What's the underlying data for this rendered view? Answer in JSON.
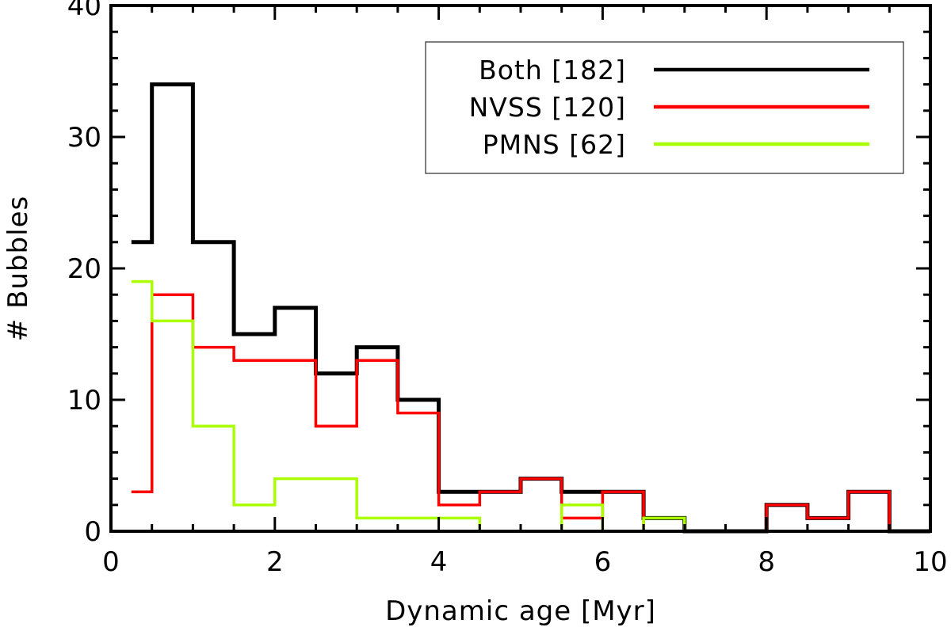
{
  "chart_data": {
    "type": "line",
    "step": true,
    "title": "",
    "xlabel": "Dynamic age [Myr]",
    "ylabel": "# Bubbles",
    "xlim": [
      0,
      10
    ],
    "ylim": [
      0,
      40
    ],
    "x_ticks": [
      0,
      2,
      4,
      6,
      8,
      10
    ],
    "y_ticks": [
      0,
      10,
      20,
      30,
      40
    ],
    "grid": false,
    "legend_position": "top-right",
    "bin_edges": [
      0.25,
      0.5,
      1.0,
      1.5,
      2.0,
      2.5,
      3.0,
      3.5,
      4.0,
      4.5,
      5.0,
      5.5,
      6.0,
      6.5,
      7.0,
      7.5,
      8.0,
      8.5,
      9.0,
      9.5,
      10.0
    ],
    "series": [
      {
        "name": "Both [182]",
        "color": "#000000",
        "values": [
          22,
          34,
          22,
          15,
          17,
          12,
          14,
          10,
          3,
          3,
          4,
          3,
          3,
          1,
          0,
          0,
          2,
          1,
          3,
          0
        ]
      },
      {
        "name": "NVSS [120]",
        "color": "#ff0000",
        "values": [
          3,
          18,
          14,
          13,
          13,
          8,
          13,
          9,
          2,
          3,
          4,
          1,
          3,
          0,
          0,
          0,
          2,
          1,
          3,
          0
        ]
      },
      {
        "name": "PMNS [62]",
        "color": "#aaff00",
        "values": [
          19,
          16,
          8,
          2,
          4,
          4,
          1,
          1,
          1,
          0,
          0,
          2,
          0,
          1,
          0,
          0,
          0,
          0,
          0,
          0
        ]
      }
    ]
  }
}
